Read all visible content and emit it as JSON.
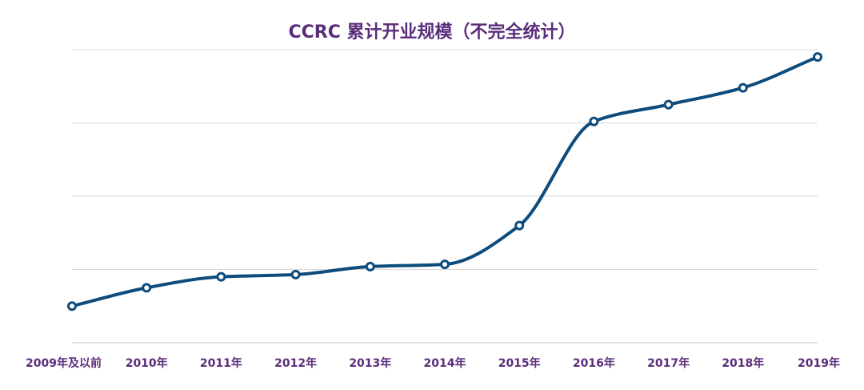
{
  "chart_data": {
    "type": "line",
    "title": "CCRC 累计开业规模（不完全统计）",
    "xlabel": "",
    "ylabel": "",
    "categories": [
      "2009年及以前",
      "2010年",
      "2011年",
      "2012年",
      "2013年",
      "2014年",
      "2015年",
      "2016年",
      "2017年",
      "2018年",
      "2019年"
    ],
    "series": [
      {
        "values": [
          0.5,
          0.75,
          0.9,
          0.93,
          1.04,
          1.07,
          1.6,
          3.02,
          3.25,
          3.48,
          3.9
        ]
      }
    ],
    "ylim": [
      0,
      4
    ],
    "grid": true,
    "y_tick_labels_shown": false,
    "colors": {
      "line": "#0d4c7c",
      "marker_fill": "#ffffff",
      "grid": "#d9d9d9",
      "text": "#5a2d7a"
    }
  }
}
